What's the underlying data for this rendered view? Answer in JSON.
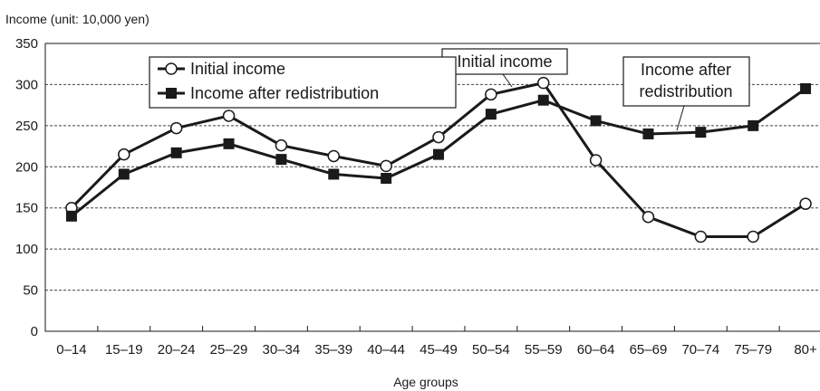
{
  "chart_data": {
    "type": "line",
    "title": "",
    "ylabel": "Income (unit: 10,000 yen)",
    "xlabel": "Age groups",
    "categories": [
      "0–14",
      "15–19",
      "20–24",
      "25–29",
      "30–34",
      "35–39",
      "40–44",
      "45–49",
      "50–54",
      "55–59",
      "60–64",
      "65–69",
      "70–74",
      "75–79",
      "80+"
    ],
    "ylim": [
      0,
      350
    ],
    "yticks": [
      0,
      50,
      100,
      150,
      200,
      250,
      300,
      350
    ],
    "grid": "horizontal dashed",
    "legend_position": "top-left",
    "series": [
      {
        "name": "Initial income",
        "marker": "open-circle",
        "values": [
          150,
          215,
          247,
          262,
          226,
          213,
          201,
          236,
          288,
          302,
          208,
          139,
          115,
          115,
          155
        ]
      },
      {
        "name": "Income after redistribution",
        "marker": "filled-square",
        "values": [
          140,
          191,
          217,
          228,
          209,
          191,
          186,
          215,
          264,
          281,
          256,
          240,
          242,
          250,
          295
        ]
      }
    ],
    "annotations": [
      {
        "text": "Initial income",
        "series": 0
      },
      {
        "lines": [
          "Income after",
          "redistribution"
        ],
        "series": 1
      }
    ]
  },
  "colors": {
    "line": "#1a1a1a",
    "grid": "#444444",
    "background": "#ffffff"
  }
}
